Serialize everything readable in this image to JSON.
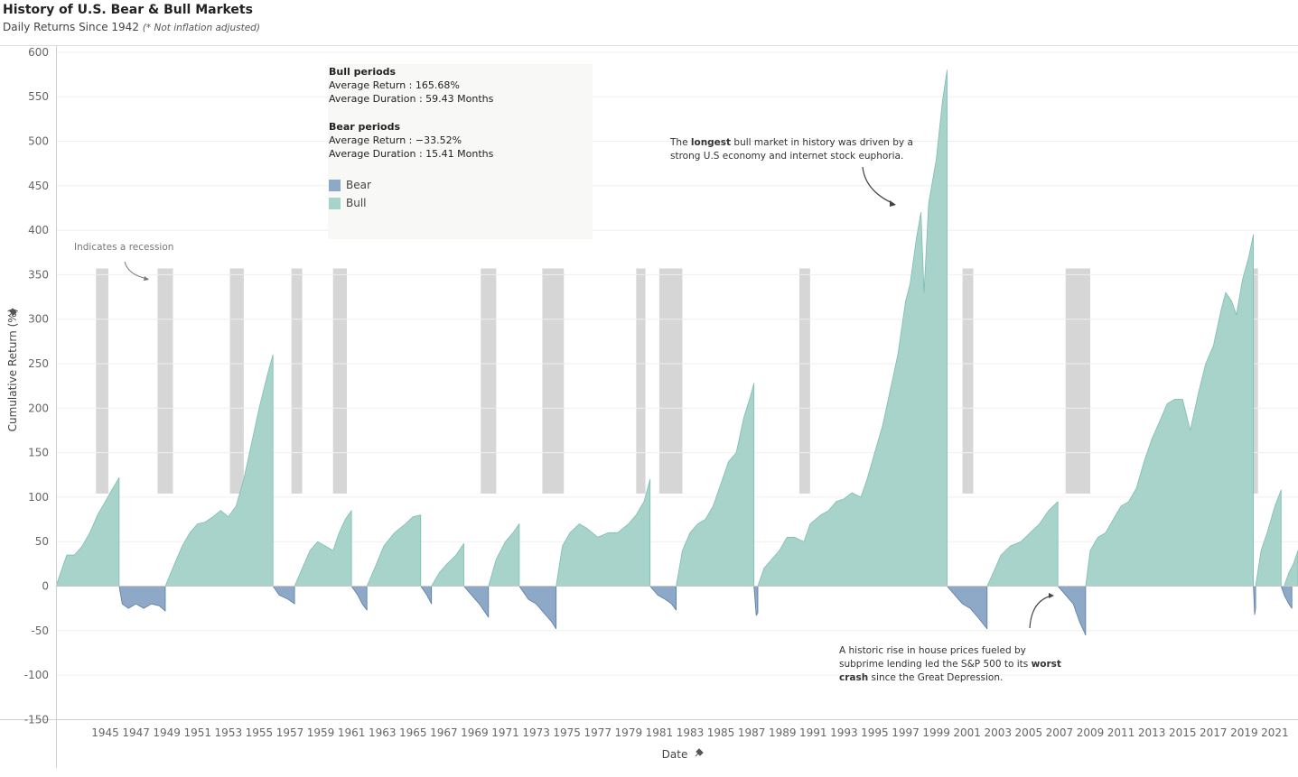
{
  "header": {
    "title": "History of U.S. Bear & Bull Markets",
    "subtitle": "Daily Returns Since 1942",
    "subtitle_note": "(* Not inflation adjusted)"
  },
  "stats": {
    "bull_title": "Bull periods",
    "bull_return": "Average Return : 165.68%",
    "bull_duration": "Average Duration : 59.43 Months",
    "bear_title": "Bear periods",
    "bear_return": "Average Return : −33.52%",
    "bear_duration": "Average Duration : 15.41 Months"
  },
  "legend": {
    "bear": "Bear",
    "bull": "Bull"
  },
  "annotations": {
    "recession": "Indicates a recession",
    "longest": [
      "The |longest| bull market in history was driven by a",
      "strong U.S economy and internet stock euphoria."
    ],
    "worst": [
      "A historic rise in house prices fueled by",
      "subprime lending led the S&P 500 to its |worst|",
      "|crash| since the Great Depression."
    ]
  },
  "colors": {
    "bull": "#a8d3cb",
    "bull_line": "#7bbdb1",
    "bear": "#8ea9c8",
    "bear_line": "#5a7ca3",
    "recession": "#d6d6d6"
  },
  "chart_data": {
    "type": "area",
    "xlabel": "Date",
    "ylabel": "Cumulative Return (%)",
    "ylim": [
      -150,
      600
    ],
    "yticks": [
      -150,
      -100,
      -50,
      0,
      50,
      100,
      150,
      200,
      250,
      300,
      350,
      400,
      450,
      500,
      550,
      600
    ],
    "xlim": [
      1942.3,
      2023.0
    ],
    "xticks": [
      1945,
      1947,
      1949,
      1951,
      1953,
      1955,
      1957,
      1959,
      1961,
      1963,
      1965,
      1967,
      1969,
      1971,
      1973,
      1975,
      1977,
      1979,
      1981,
      1983,
      1985,
      1987,
      1989,
      1991,
      1993,
      1995,
      1997,
      1999,
      2001,
      2003,
      2005,
      2007,
      2009,
      2011,
      2013,
      2015,
      2017,
      2019,
      2021
    ],
    "recession_band": [
      104,
      357
    ],
    "recessions": [
      [
        1944.9,
        1945.7
      ],
      [
        1948.9,
        1949.9
      ],
      [
        1953.6,
        1954.5
      ],
      [
        1957.6,
        1958.3
      ],
      [
        1960.3,
        1961.2
      ],
      [
        1969.9,
        1970.9
      ],
      [
        1973.9,
        1975.3
      ],
      [
        1980.0,
        1980.6
      ],
      [
        1981.5,
        1983.0
      ],
      [
        1990.6,
        1991.3
      ],
      [
        2001.2,
        2001.9
      ],
      [
        2007.9,
        2009.5
      ],
      [
        2020.0,
        2020.4
      ]
    ],
    "series": [
      {
        "name": "Bull",
        "segments": [
          [
            [
              1942.3,
              0
            ],
            [
              1942.6,
              15
            ],
            [
              1943.0,
              35
            ],
            [
              1943.5,
              35
            ],
            [
              1944.0,
              45
            ],
            [
              1944.5,
              60
            ],
            [
              1945.0,
              80
            ],
            [
              1945.5,
              95
            ],
            [
              1946.0,
              110
            ],
            [
              1946.4,
              122
            ]
          ],
          [
            [
              1949.4,
              0
            ],
            [
              1950.0,
              25
            ],
            [
              1950.5,
              45
            ],
            [
              1951.0,
              60
            ],
            [
              1951.5,
              70
            ],
            [
              1952.0,
              72
            ],
            [
              1952.5,
              78
            ],
            [
              1953.0,
              85
            ],
            [
              1953.5,
              78
            ],
            [
              1954.0,
              90
            ],
            [
              1954.5,
              120
            ],
            [
              1955.0,
              160
            ],
            [
              1955.5,
              200
            ],
            [
              1956.0,
              235
            ],
            [
              1956.4,
              260
            ]
          ],
          [
            [
              1957.8,
              0
            ],
            [
              1958.3,
              20
            ],
            [
              1958.8,
              40
            ],
            [
              1959.3,
              50
            ],
            [
              1959.8,
              45
            ],
            [
              1960.3,
              40
            ],
            [
              1960.7,
              60
            ],
            [
              1961.1,
              75
            ],
            [
              1961.5,
              85
            ]
          ],
          [
            [
              1962.5,
              0
            ],
            [
              1963.0,
              20
            ],
            [
              1963.6,
              45
            ],
            [
              1964.3,
              60
            ],
            [
              1965.0,
              70
            ],
            [
              1965.5,
              78
            ],
            [
              1966.0,
              80
            ]
          ],
          [
            [
              1966.7,
              0
            ],
            [
              1967.2,
              15
            ],
            [
              1967.7,
              25
            ],
            [
              1968.3,
              35
            ],
            [
              1968.8,
              48
            ]
          ],
          [
            [
              1970.4,
              0
            ],
            [
              1970.9,
              30
            ],
            [
              1971.5,
              50
            ],
            [
              1972.0,
              60
            ],
            [
              1972.4,
              70
            ]
          ],
          [
            [
              1974.8,
              0
            ],
            [
              1975.2,
              45
            ],
            [
              1975.7,
              60
            ],
            [
              1976.3,
              70
            ],
            [
              1976.8,
              65
            ],
            [
              1977.5,
              55
            ],
            [
              1978.2,
              60
            ],
            [
              1978.8,
              60
            ],
            [
              1979.5,
              70
            ],
            [
              1980.0,
              80
            ],
            [
              1980.5,
              95
            ],
            [
              1980.9,
              120
            ]
          ],
          [
            [
              1982.6,
              0
            ],
            [
              1983.0,
              40
            ],
            [
              1983.5,
              60
            ],
            [
              1984.0,
              70
            ],
            [
              1984.5,
              75
            ],
            [
              1985.0,
              90
            ],
            [
              1985.5,
              115
            ],
            [
              1986.0,
              140
            ],
            [
              1986.5,
              150
            ],
            [
              1987.0,
              190
            ],
            [
              1987.4,
              212
            ],
            [
              1987.65,
              228
            ]
          ],
          [
            [
              1987.9,
              0
            ],
            [
              1988.3,
              20
            ],
            [
              1988.8,
              30
            ],
            [
              1989.3,
              40
            ],
            [
              1989.8,
              55
            ],
            [
              1990.3,
              55
            ],
            [
              1990.9,
              50
            ],
            [
              1991.3,
              70
            ],
            [
              1992.0,
              80
            ],
            [
              1992.5,
              85
            ],
            [
              1993.0,
              95
            ],
            [
              1993.5,
              98
            ],
            [
              1994.0,
              105
            ],
            [
              1994.6,
              100
            ],
            [
              1995.0,
              120
            ],
            [
              1995.5,
              150
            ],
            [
              1996.0,
              180
            ],
            [
              1996.5,
              220
            ],
            [
              1997.0,
              260
            ],
            [
              1997.5,
              320
            ],
            [
              1997.8,
              340
            ],
            [
              1998.2,
              390
            ],
            [
              1998.5,
              420
            ],
            [
              1998.7,
              330
            ],
            [
              1999.0,
              430
            ],
            [
              1999.5,
              480
            ],
            [
              1999.9,
              545
            ],
            [
              2000.2,
              580
            ]
          ],
          [
            [
              2002.8,
              0
            ],
            [
              2003.2,
              15
            ],
            [
              2003.7,
              35
            ],
            [
              2004.3,
              45
            ],
            [
              2005.0,
              50
            ],
            [
              2005.6,
              60
            ],
            [
              2006.2,
              70
            ],
            [
              2006.8,
              85
            ],
            [
              2007.4,
              95
            ]
          ],
          [
            [
              2009.2,
              0
            ],
            [
              2009.5,
              40
            ],
            [
              2010.0,
              55
            ],
            [
              2010.5,
              60
            ],
            [
              2011.0,
              75
            ],
            [
              2011.5,
              90
            ],
            [
              2012.0,
              95
            ],
            [
              2012.5,
              110
            ],
            [
              2013.0,
              140
            ],
            [
              2013.5,
              165
            ],
            [
              2014.0,
              185
            ],
            [
              2014.5,
              205
            ],
            [
              2015.0,
              210
            ],
            [
              2015.5,
              210
            ],
            [
              2016.0,
              175
            ],
            [
              2016.5,
              215
            ],
            [
              2017.0,
              250
            ],
            [
              2017.5,
              270
            ],
            [
              2018.0,
              310
            ],
            [
              2018.3,
              330
            ],
            [
              2018.7,
              320
            ],
            [
              2019.0,
              305
            ],
            [
              2019.4,
              345
            ],
            [
              2019.8,
              370
            ],
            [
              2020.1,
              395
            ]
          ],
          [
            [
              2020.25,
              0
            ],
            [
              2020.6,
              40
            ],
            [
              2021.0,
              60
            ],
            [
              2021.5,
              90
            ],
            [
              2021.9,
              108
            ]
          ],
          [
            [
              2022.1,
              0
            ],
            [
              2022.4,
              15
            ],
            [
              2022.7,
              25
            ],
            [
              2023.0,
              40
            ]
          ]
        ]
      },
      {
        "name": "Bear",
        "segments": [
          [
            [
              1946.4,
              0
            ],
            [
              1946.6,
              -20
            ],
            [
              1947.0,
              -25
            ],
            [
              1947.5,
              -20
            ],
            [
              1948.0,
              -25
            ],
            [
              1948.5,
              -20
            ],
            [
              1949.0,
              -22
            ],
            [
              1949.4,
              -28
            ]
          ],
          [
            [
              1956.4,
              0
            ],
            [
              1956.8,
              -10
            ],
            [
              1957.4,
              -15
            ],
            [
              1957.8,
              -20
            ]
          ],
          [
            [
              1961.5,
              0
            ],
            [
              1961.9,
              -10
            ],
            [
              1962.2,
              -20
            ],
            [
              1962.5,
              -27
            ]
          ],
          [
            [
              1966.0,
              0
            ],
            [
              1966.4,
              -10
            ],
            [
              1966.7,
              -20
            ]
          ],
          [
            [
              1968.8,
              0
            ],
            [
              1969.3,
              -10
            ],
            [
              1969.8,
              -20
            ],
            [
              1970.4,
              -35
            ]
          ],
          [
            [
              1972.4,
              0
            ],
            [
              1973.0,
              -15
            ],
            [
              1973.5,
              -20
            ],
            [
              1974.0,
              -30
            ],
            [
              1974.5,
              -40
            ],
            [
              1974.8,
              -48
            ]
          ],
          [
            [
              1980.9,
              0
            ],
            [
              1981.4,
              -10
            ],
            [
              1981.9,
              -15
            ],
            [
              1982.3,
              -20
            ],
            [
              1982.6,
              -27
            ]
          ],
          [
            [
              1987.65,
              0
            ],
            [
              1987.8,
              -33
            ],
            [
              1987.9,
              -30
            ]
          ],
          [
            [
              2000.2,
              0
            ],
            [
              2000.7,
              -10
            ],
            [
              2001.2,
              -20
            ],
            [
              2001.7,
              -25
            ],
            [
              2002.2,
              -35
            ],
            [
              2002.8,
              -48
            ]
          ],
          [
            [
              2007.4,
              0
            ],
            [
              2007.9,
              -10
            ],
            [
              2008.4,
              -20
            ],
            [
              2008.8,
              -40
            ],
            [
              2009.2,
              -55
            ]
          ],
          [
            [
              2020.1,
              0
            ],
            [
              2020.18,
              -32
            ],
            [
              2020.25,
              -25
            ]
          ],
          [
            [
              2021.9,
              0
            ],
            [
              2022.1,
              -10
            ],
            [
              2022.4,
              -20
            ],
            [
              2022.6,
              -25
            ]
          ]
        ]
      }
    ]
  }
}
